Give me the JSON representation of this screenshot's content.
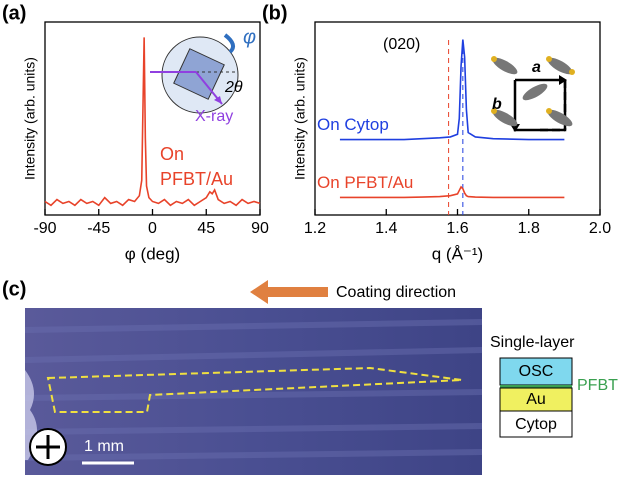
{
  "panel_labels": [
    "(a)",
    "(b)",
    "(c)"
  ],
  "chart_data": [
    {
      "type": "line",
      "ylabel": "Intensity (arb. units)",
      "xlabel": "φ (deg)",
      "xlim": [
        -90,
        90
      ],
      "xticks": [
        -90,
        -45,
        0,
        45,
        90
      ],
      "ylim": [
        0,
        10
      ],
      "series": [
        {
          "color": "#e8432a",
          "x": [
            -90,
            -85,
            -80,
            -75,
            -70,
            -65,
            -60,
            -55,
            -50,
            -45,
            -40,
            -35,
            -30,
            -25,
            -20,
            -15,
            -11,
            -9,
            -8,
            -7,
            -6,
            -5,
            -3,
            0,
            5,
            10,
            15,
            20,
            25,
            30,
            35,
            40,
            45,
            48,
            50,
            52,
            55,
            60,
            65,
            70,
            75,
            80,
            85,
            90
          ],
          "values": [
            0.7,
            0.5,
            0.8,
            0.6,
            0.7,
            0.5,
            0.8,
            0.6,
            0.7,
            0.5,
            0.9,
            0.6,
            0.7,
            0.5,
            0.8,
            0.7,
            1.0,
            1.8,
            5.5,
            9.2,
            4.0,
            1.5,
            0.9,
            0.7,
            0.6,
            0.8,
            0.5,
            0.7,
            0.6,
            0.8,
            0.5,
            0.7,
            0.9,
            1.2,
            1.1,
            1.3,
            0.8,
            0.6,
            0.7,
            0.5,
            0.8,
            0.6,
            0.7,
            0.6
          ]
        }
      ],
      "annotations": [
        "On",
        "PFBT/Au",
        "φ",
        "2θ",
        "X-ray"
      ]
    },
    {
      "type": "line",
      "ylabel": "Intensity (arb. units)",
      "xlabel": "q (Å⁻¹)",
      "xlim": [
        1.2,
        2.0
      ],
      "xticks": [
        1.2,
        1.4,
        1.6,
        1.8,
        {
          "value": 2,
          "label": "2.0"
        }
      ],
      "ylim": [
        0,
        11
      ],
      "series": [
        {
          "name": "On Cytop",
          "color": "#1f3fe0",
          "x": [
            1.27,
            1.35,
            1.45,
            1.5,
            1.55,
            1.58,
            1.6,
            1.605,
            1.61,
            1.615,
            1.62,
            1.625,
            1.63,
            1.65,
            1.7,
            1.8,
            1.9
          ],
          "values": [
            4.3,
            4.3,
            4.3,
            4.35,
            4.4,
            4.45,
            4.6,
            5.5,
            8.5,
            10.0,
            9.0,
            6.0,
            4.7,
            4.45,
            4.35,
            4.3,
            4.3
          ]
        },
        {
          "name": "On PFBT/Au",
          "color": "#e8432a",
          "x": [
            1.27,
            1.35,
            1.45,
            1.5,
            1.55,
            1.58,
            1.6,
            1.605,
            1.61,
            1.615,
            1.62,
            1.625,
            1.63,
            1.65,
            1.7,
            1.8,
            1.9
          ],
          "values": [
            1.0,
            1.0,
            1.0,
            1.02,
            1.05,
            1.1,
            1.2,
            1.4,
            1.6,
            1.5,
            1.25,
            1.1,
            1.05,
            1.02,
            1.0,
            1.0,
            1.0
          ]
        }
      ],
      "ref_lines": [
        {
          "x": 1.575,
          "color": "#e8432a"
        },
        {
          "x": 1.615,
          "color": "#1f3fe0"
        }
      ],
      "annotations": [
        "(020)",
        "a",
        "b"
      ]
    }
  ],
  "panel_c": {
    "arrow_label": "Coating direction",
    "scale_bar": "1 mm",
    "stack_title": "Single-layer",
    "layers": [
      "OSC",
      "Au",
      "Cytop"
    ],
    "interlayer": "PFBT"
  }
}
